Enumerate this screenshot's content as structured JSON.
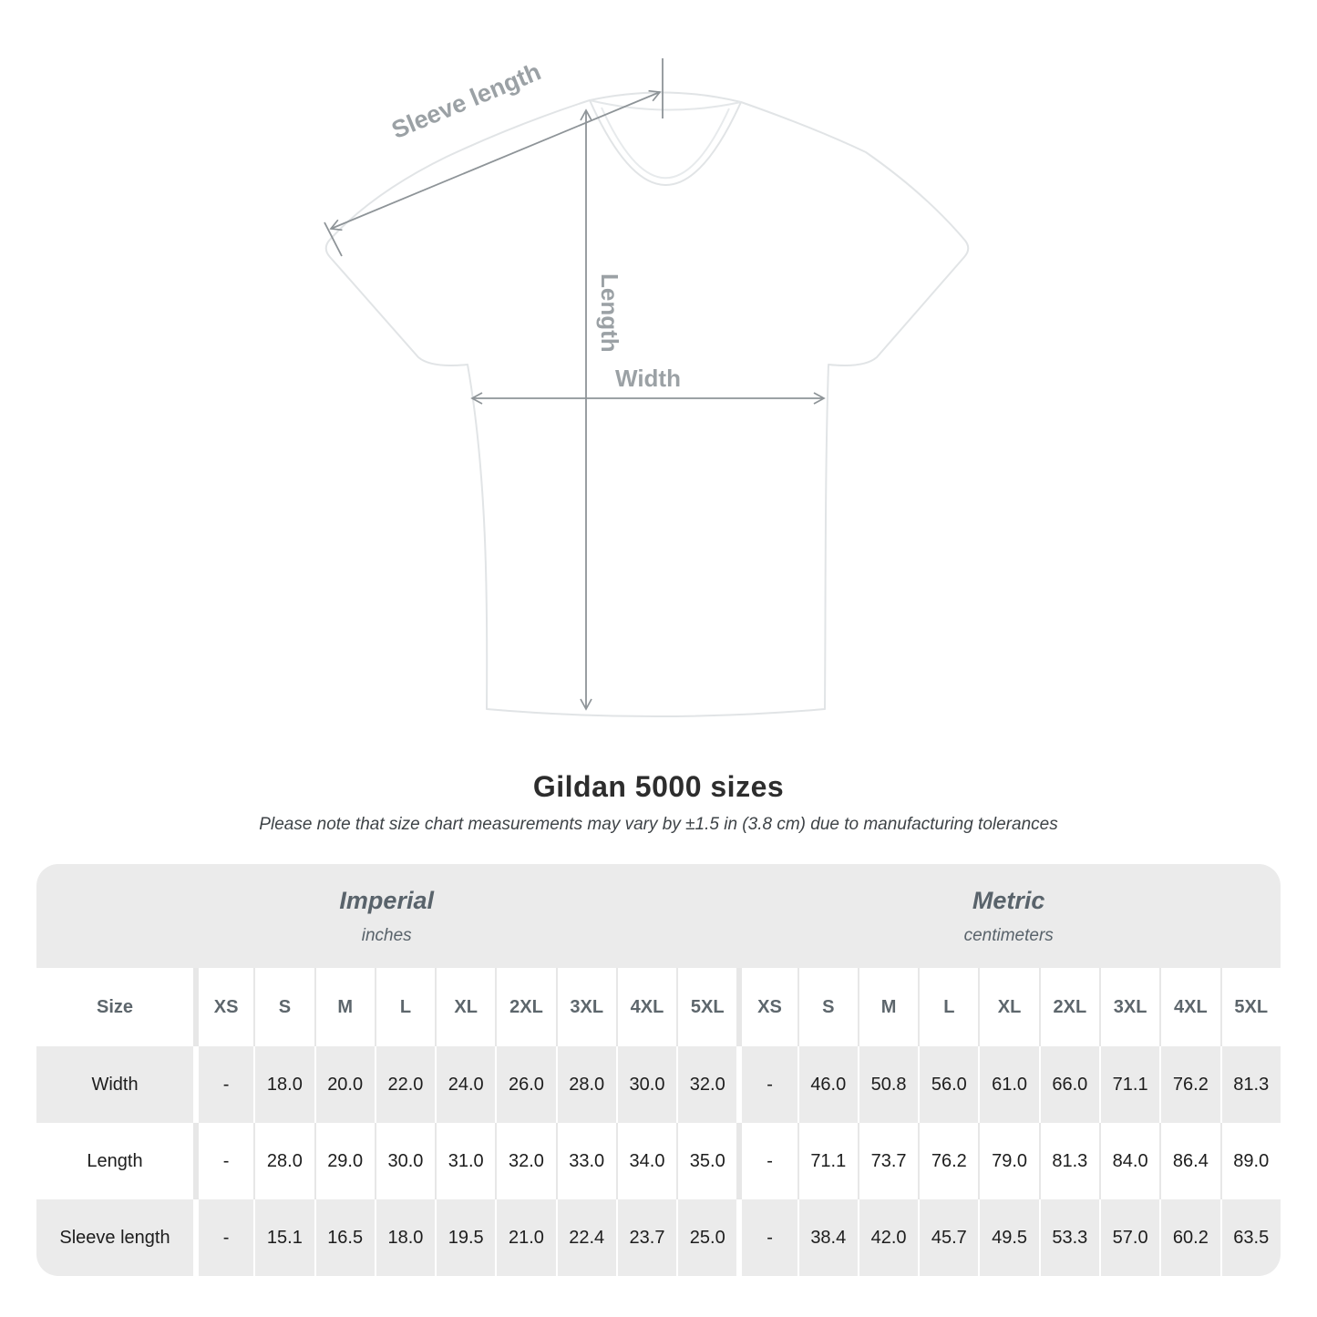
{
  "diagram": {
    "labels": {
      "sleeve_length": "Sleeve length",
      "length": "Length",
      "width": "Width"
    }
  },
  "header": {
    "title": "Gildan 5000 sizes",
    "subtitle": "Please note that size chart measurements may vary by ±1.5 in (3.8 cm) due to manufacturing tolerances"
  },
  "chart_data": {
    "type": "table",
    "title": "Gildan 5000 sizes",
    "subtitle": "Please note that size chart measurements may vary by ±1.5 in (3.8 cm) due to manufacturing tolerances",
    "corner_label": "Size",
    "unit_groups": [
      {
        "label": "Imperial",
        "unit": "inches"
      },
      {
        "label": "Metric",
        "unit": "centimeters"
      }
    ],
    "sizes": [
      "XS",
      "S",
      "M",
      "L",
      "XL",
      "2XL",
      "3XL",
      "4XL",
      "5XL"
    ],
    "rows": [
      {
        "label": "Width",
        "imperial": [
          "-",
          "18.0",
          "20.0",
          "22.0",
          "24.0",
          "26.0",
          "28.0",
          "30.0",
          "32.0"
        ],
        "metric": [
          "-",
          "46.0",
          "50.8",
          "56.0",
          "61.0",
          "66.0",
          "71.1",
          "76.2",
          "81.3"
        ]
      },
      {
        "label": "Length",
        "imperial": [
          "-",
          "28.0",
          "29.0",
          "30.0",
          "31.0",
          "32.0",
          "33.0",
          "34.0",
          "35.0"
        ],
        "metric": [
          "-",
          "71.1",
          "73.7",
          "76.2",
          "79.0",
          "81.3",
          "84.0",
          "86.4",
          "89.0"
        ]
      },
      {
        "label": "Sleeve length",
        "imperial": [
          "-",
          "15.1",
          "16.5",
          "18.0",
          "19.5",
          "21.0",
          "22.4",
          "23.7",
          "25.0"
        ],
        "metric": [
          "-",
          "38.4",
          "42.0",
          "45.7",
          "49.5",
          "53.3",
          "57.0",
          "60.2",
          "63.5"
        ]
      }
    ]
  },
  "colors": {
    "table_band_gray": "#ebebeb",
    "header_text": "#5d666c",
    "value_text": "#1d1d1d",
    "title_text": "#2d2d2d",
    "diagram_label": "#9ba1a5",
    "arrow": "#8e9498",
    "shirt_outline": "#e1e4e6"
  }
}
